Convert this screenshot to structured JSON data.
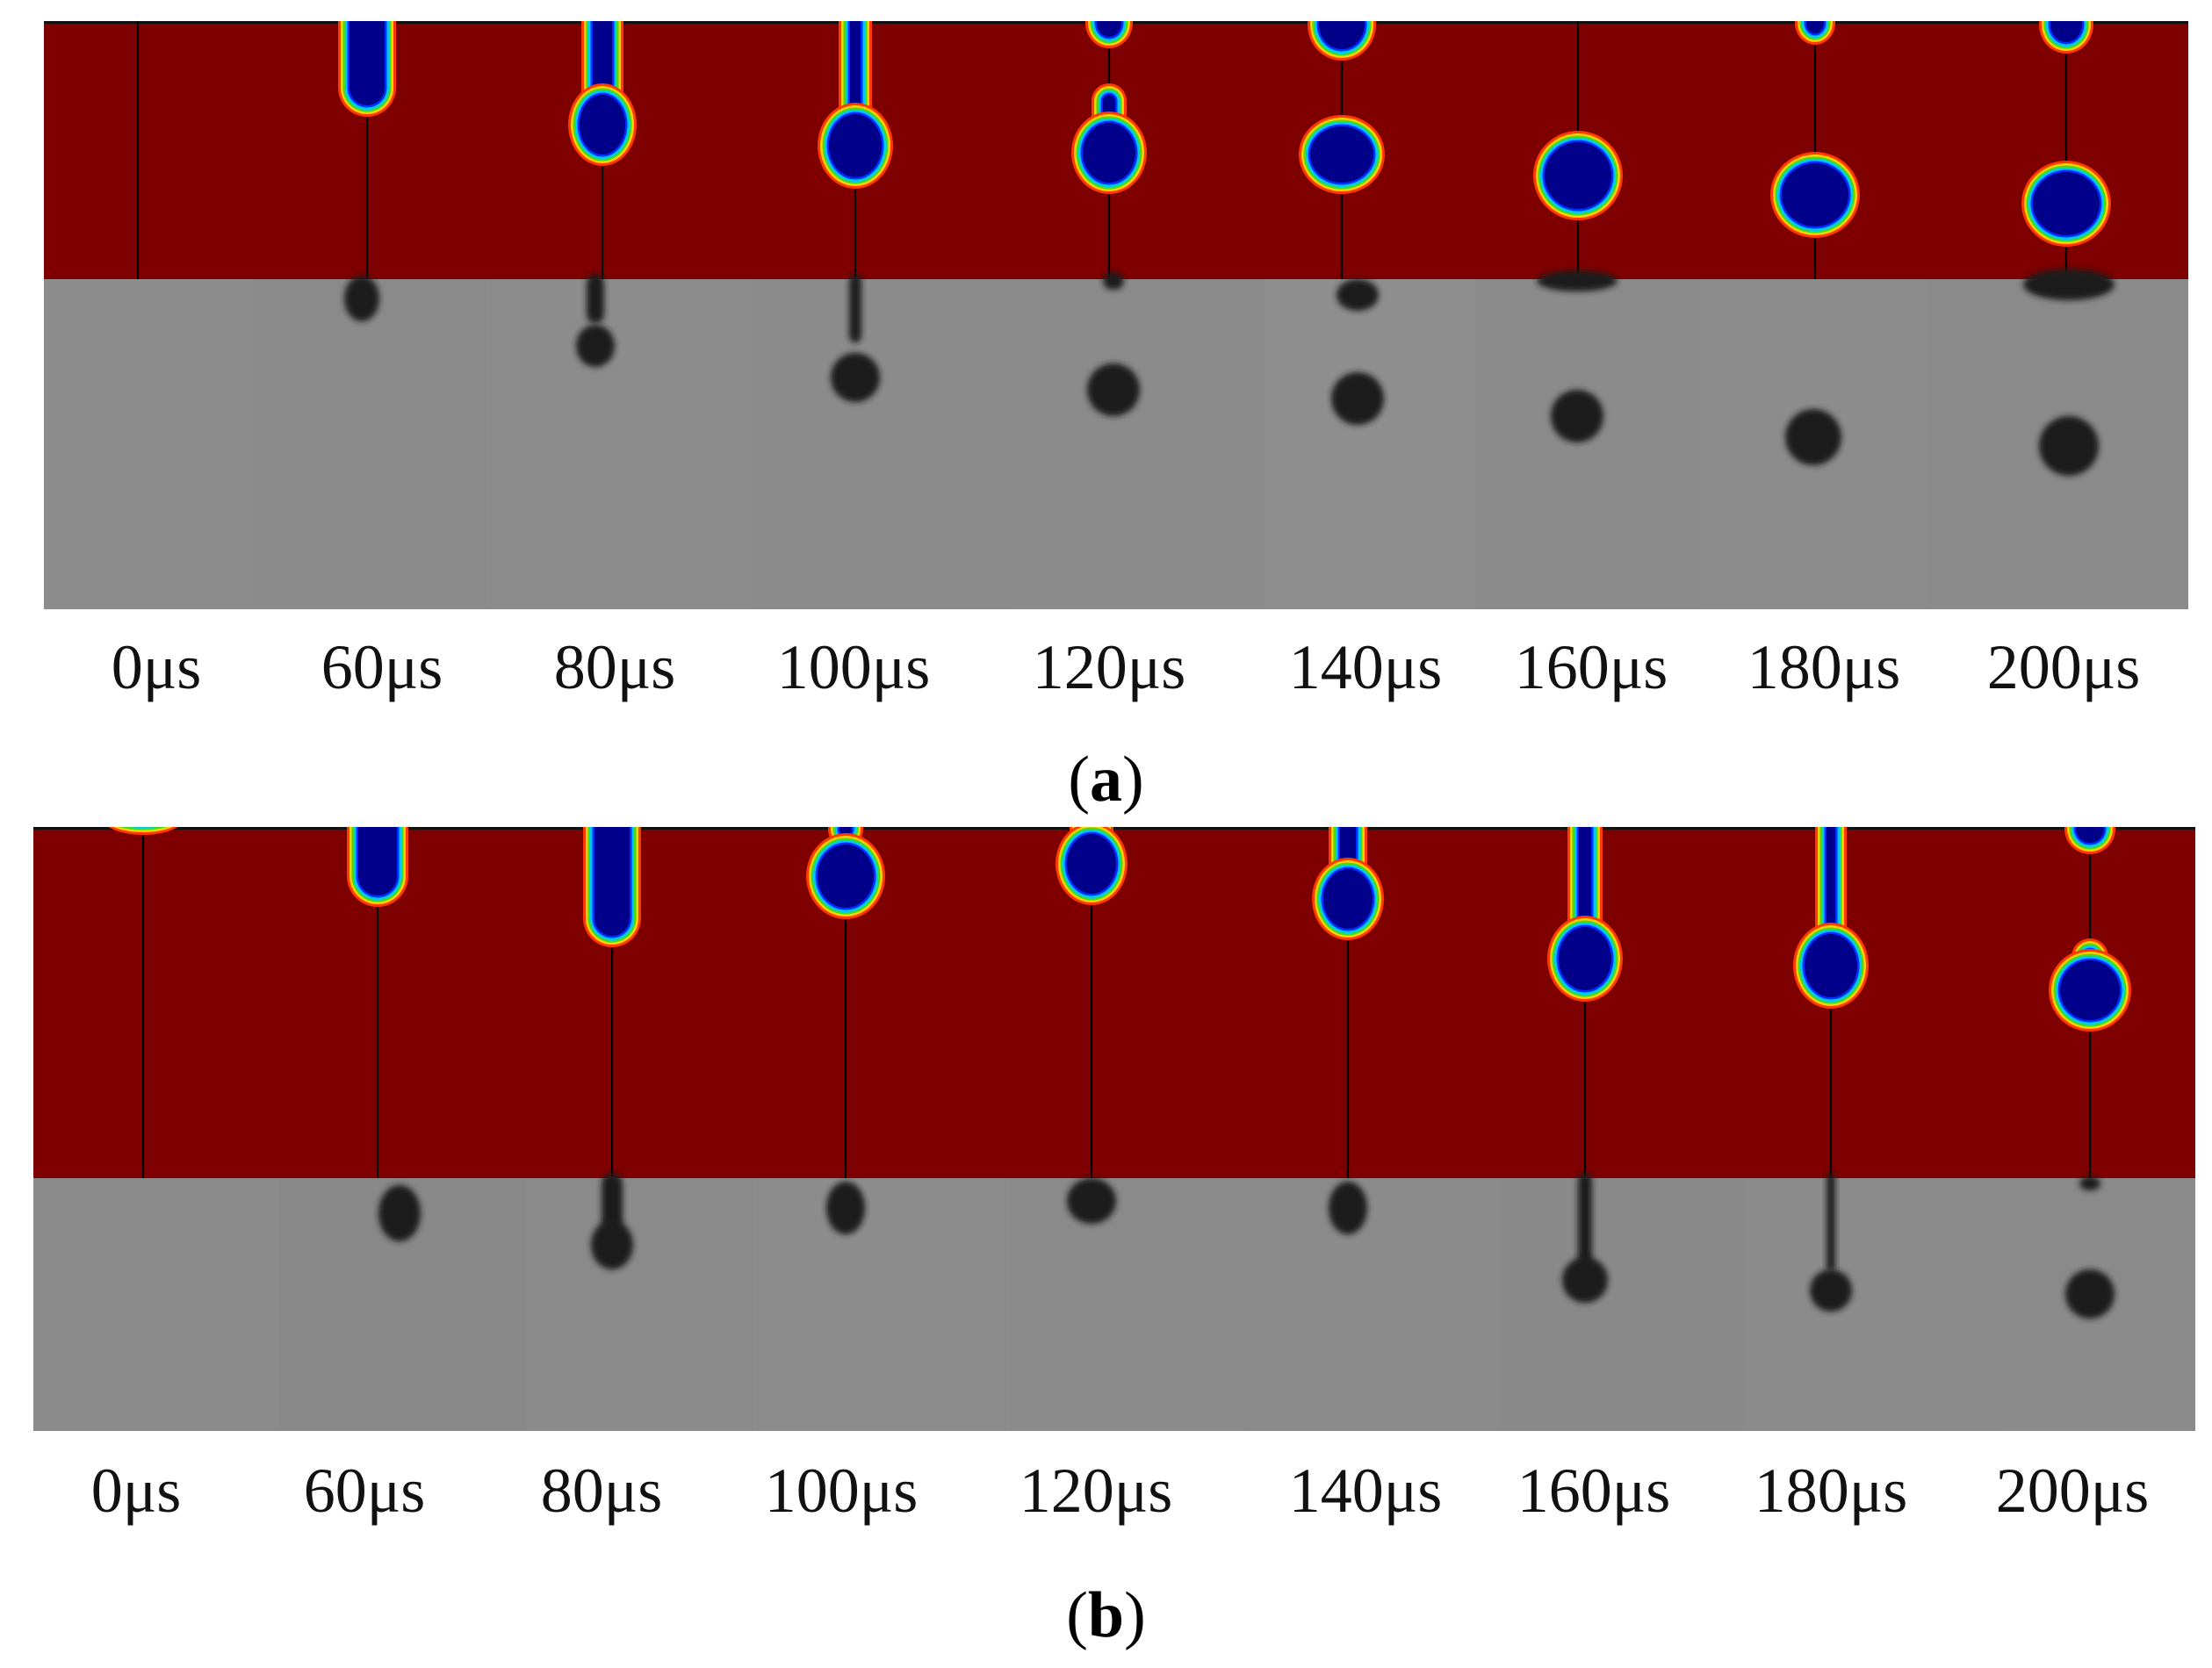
{
  "figure": {
    "panel_a": {
      "label": "a",
      "time_labels": [
        "0μs",
        "60μs",
        "80μs",
        "100μs",
        "120μs",
        "140μs",
        "160μs",
        "180μs",
        "200μs"
      ]
    },
    "panel_b": {
      "label": "b",
      "time_labels": [
        "0μs",
        "60μs",
        "80μs",
        "100μs",
        "120μs",
        "140μs",
        "160μs",
        "180μs",
        "200μs"
      ]
    }
  },
  "colors": {
    "simulation_background": "#7f0000",
    "droplet_core": "#00008b",
    "experiment_background": "#8a8a8a",
    "experiment_droplet": "#1a1a1a"
  }
}
